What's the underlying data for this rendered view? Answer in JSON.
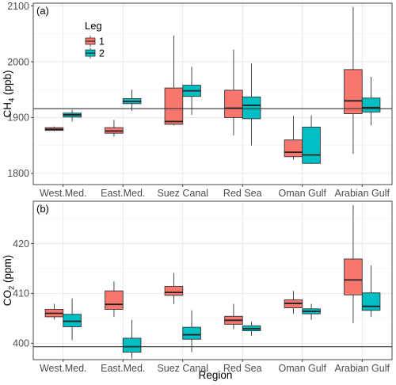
{
  "legend": {
    "title": "Leg",
    "entries": [
      {
        "label": "1",
        "color": "#F8766D"
      },
      {
        "label": "2",
        "color": "#00BFC4"
      }
    ]
  },
  "xlabel": "Region",
  "chart_data": [
    {
      "type": "box",
      "panel_label": "(a)",
      "ylabel_main": "CH",
      "ylabel_sub": "4",
      "ylabel_unit": " (ppb)",
      "ylim": [
        1780,
        2105
      ],
      "yticks": [
        1800,
        1900,
        2000,
        2100
      ],
      "hline": 1916,
      "grid": true,
      "legend_position": "top-left",
      "categories": [
        "West.Med.",
        "East.Med.",
        "Suez Canal",
        "Red Sea",
        "Oman Gulf",
        "Arabian Gulf"
      ],
      "series": [
        {
          "name": "1",
          "boxes": [
            {
              "min": 1876,
              "q1": 1877,
              "median": 1879,
              "q3": 1882,
              "max": 1884
            },
            {
              "min": 1866,
              "q1": 1872,
              "median": 1876,
              "q3": 1882,
              "max": 1896
            },
            {
              "min": 1886,
              "q1": 1888,
              "median": 1893,
              "q3": 1953,
              "max": 2047
            },
            {
              "min": 1868,
              "q1": 1900,
              "median": 1917,
              "q3": 1949,
              "max": 2022
            },
            {
              "min": 1825,
              "q1": 1830,
              "median": 1838,
              "q3": 1860,
              "max": 1903
            },
            {
              "min": 1835,
              "q1": 1907,
              "median": 1930,
              "q3": 1986,
              "max": 2098
            }
          ]
        },
        {
          "name": "2",
          "boxes": [
            {
              "min": 1893,
              "q1": 1901,
              "median": 1905,
              "q3": 1908,
              "max": 1914
            },
            {
              "min": 1912,
              "q1": 1925,
              "median": 1929,
              "q3": 1934,
              "max": 1950
            },
            {
              "min": 1905,
              "q1": 1938,
              "median": 1948,
              "q3": 1958,
              "max": 1991
            },
            {
              "min": 1850,
              "q1": 1898,
              "median": 1922,
              "q3": 1937,
              "max": 1997
            },
            {
              "min": 1817,
              "q1": 1818,
              "median": 1833,
              "q3": 1883,
              "max": 1904
            },
            {
              "min": 1886,
              "q1": 1910,
              "median": 1918,
              "q3": 1935,
              "max": 1973
            }
          ]
        }
      ]
    },
    {
      "type": "box",
      "panel_label": "(b)",
      "ylabel_main": "CO",
      "ylabel_sub": "2",
      "ylabel_unit": " (ppm)",
      "ylim": [
        396.7,
        428.5
      ],
      "yticks": [
        400,
        410,
        420
      ],
      "hline": 399.3,
      "grid": true,
      "categories": [
        "West.Med.",
        "East.Med.",
        "Suez Canal",
        "Red Sea",
        "Oman Gulf",
        "Arabian Gulf"
      ],
      "series": [
        {
          "name": "1",
          "boxes": [
            {
              "min": 404.8,
              "q1": 405.3,
              "median": 406.0,
              "q3": 406.8,
              "max": 407.9
            },
            {
              "min": 405.3,
              "q1": 406.8,
              "median": 407.8,
              "q3": 410.5,
              "max": 412.4
            },
            {
              "min": 407.9,
              "q1": 409.6,
              "median": 410.2,
              "q3": 411.4,
              "max": 414.1
            },
            {
              "min": 402.8,
              "q1": 403.8,
              "median": 404.6,
              "q3": 405.4,
              "max": 407.9
            },
            {
              "min": 405.9,
              "q1": 407.1,
              "median": 408.0,
              "q3": 408.7,
              "max": 410.5
            },
            {
              "min": 404.0,
              "q1": 409.7,
              "median": 412.7,
              "q3": 416.9,
              "max": 427.7
            }
          ]
        },
        {
          "name": "2",
          "boxes": [
            {
              "min": 400.6,
              "q1": 403.3,
              "median": 404.4,
              "q3": 405.8,
              "max": 409.0
            },
            {
              "min": 396.9,
              "q1": 398.2,
              "median": 399.3,
              "q3": 401.0,
              "max": 404.7
            },
            {
              "min": 398.2,
              "q1": 400.8,
              "median": 401.7,
              "q3": 403.2,
              "max": 406.6
            },
            {
              "min": 401.5,
              "q1": 402.5,
              "median": 402.9,
              "q3": 403.5,
              "max": 404.3
            },
            {
              "min": 404.7,
              "q1": 405.9,
              "median": 406.4,
              "q3": 406.9,
              "max": 407.9
            },
            {
              "min": 405.3,
              "q1": 406.6,
              "median": 407.4,
              "q3": 410.1,
              "max": 415.6
            }
          ]
        }
      ]
    }
  ]
}
